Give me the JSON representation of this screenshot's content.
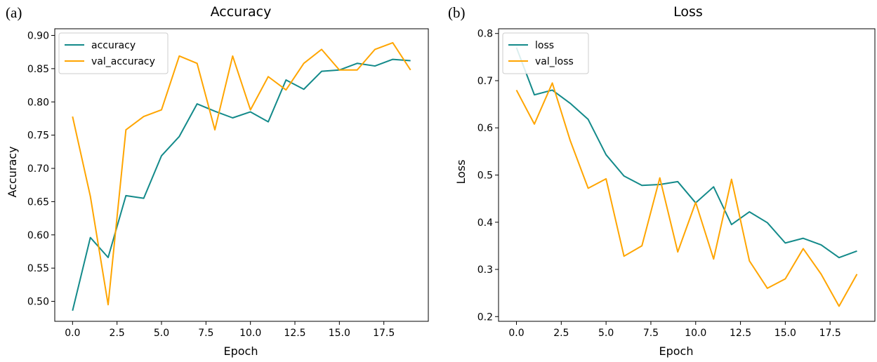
{
  "panels": [
    {
      "label": "(a)"
    },
    {
      "label": "(b)"
    }
  ],
  "chart_data": [
    {
      "type": "line",
      "title": "Accuracy",
      "xlabel": "Epoch",
      "ylabel": "Accuracy",
      "xlim": [
        -1,
        20
      ],
      "ylim": [
        0.47,
        0.91
      ],
      "xticks": [
        0.0,
        2.5,
        5.0,
        7.5,
        10.0,
        12.5,
        15.0,
        17.5
      ],
      "xtick_labels": [
        "0.0",
        "2.5",
        "5.0",
        "7.5",
        "10.0",
        "12.5",
        "15.0",
        "17.5"
      ],
      "yticks": [
        0.5,
        0.55,
        0.6,
        0.65,
        0.7,
        0.75,
        0.8,
        0.85,
        0.9
      ],
      "ytick_labels": [
        "0.50",
        "0.55",
        "0.60",
        "0.65",
        "0.70",
        "0.75",
        "0.80",
        "0.85",
        "0.90"
      ],
      "grid": false,
      "legend": "top-left",
      "x": [
        0,
        1,
        2,
        3,
        4,
        5,
        6,
        7,
        8,
        9,
        10,
        11,
        12,
        13,
        14,
        15,
        16,
        17,
        18,
        19
      ],
      "series": [
        {
          "name": "accuracy",
          "color": "#138a8a",
          "values": [
            0.486,
            0.596,
            0.566,
            0.659,
            0.655,
            0.719,
            0.748,
            0.797,
            0.786,
            0.776,
            0.785,
            0.77,
            0.833,
            0.819,
            0.846,
            0.848,
            0.858,
            0.854,
            0.864,
            0.862
          ]
        },
        {
          "name": "val_accuracy",
          "color": "#ffa500",
          "values": [
            0.778,
            0.658,
            0.495,
            0.758,
            0.778,
            0.788,
            0.869,
            0.858,
            0.758,
            0.869,
            0.788,
            0.838,
            0.818,
            0.858,
            0.879,
            0.848,
            0.848,
            0.879,
            0.889,
            0.848
          ]
        }
      ]
    },
    {
      "type": "line",
      "title": "Loss",
      "xlabel": "Epoch",
      "ylabel": "Loss",
      "xlim": [
        -1,
        20
      ],
      "ylim": [
        0.19,
        0.81
      ],
      "xticks": [
        0.0,
        2.5,
        5.0,
        7.5,
        10.0,
        12.5,
        15.0,
        17.5
      ],
      "xtick_labels": [
        "0.0",
        "2.5",
        "5.0",
        "7.5",
        "10.0",
        "12.5",
        "15.0",
        "17.5"
      ],
      "yticks": [
        0.2,
        0.3,
        0.4,
        0.5,
        0.6,
        0.7,
        0.8
      ],
      "ytick_labels": [
        "0.2",
        "0.3",
        "0.4",
        "0.5",
        "0.6",
        "0.7",
        "0.8"
      ],
      "grid": false,
      "legend": "top-left",
      "x": [
        0,
        1,
        2,
        3,
        4,
        5,
        6,
        7,
        8,
        9,
        10,
        11,
        12,
        13,
        14,
        15,
        16,
        17,
        18,
        19
      ],
      "series": [
        {
          "name": "loss",
          "color": "#138a8a",
          "values": [
            0.77,
            0.67,
            0.68,
            0.652,
            0.618,
            0.543,
            0.498,
            0.478,
            0.48,
            0.486,
            0.441,
            0.475,
            0.395,
            0.422,
            0.399,
            0.356,
            0.366,
            0.352,
            0.325,
            0.339
          ]
        },
        {
          "name": "val_loss",
          "color": "#ffa500",
          "values": [
            0.68,
            0.608,
            0.695,
            0.573,
            0.472,
            0.492,
            0.328,
            0.35,
            0.494,
            0.337,
            0.442,
            0.322,
            0.491,
            0.318,
            0.26,
            0.28,
            0.344,
            0.29,
            0.222,
            0.29
          ]
        }
      ]
    }
  ]
}
